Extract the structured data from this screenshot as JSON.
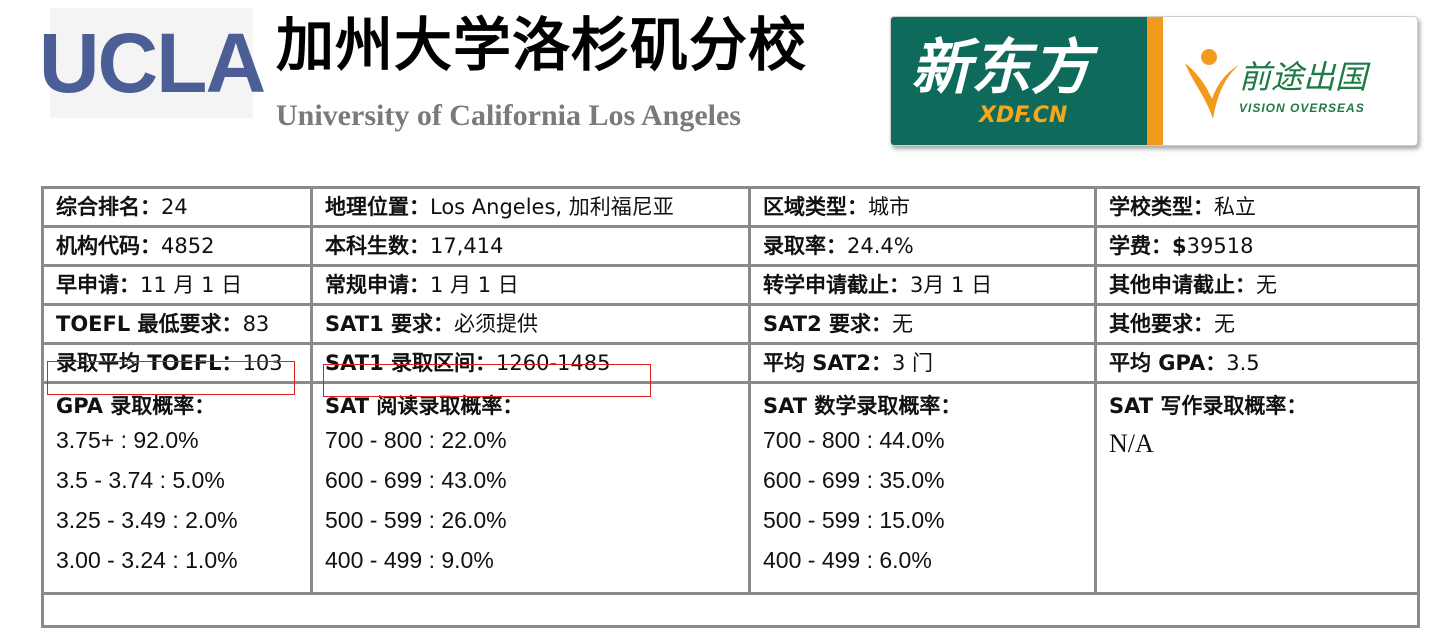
{
  "header": {
    "logo_text": "UCLA",
    "title_cn": "加州大学洛杉矶分校",
    "title_en": "University of California Los Angeles",
    "partner": {
      "xdf_cn": "新东方",
      "xdf_en": "XDF.CN",
      "vo_cn": "前途出国",
      "vo_en": "VISION OVERSEAS"
    }
  },
  "colors": {
    "ucla_blue": "#4b5f96",
    "xdf_green": "#0e6b5b",
    "xdf_orange": "#f29a1b",
    "highlight_red": "#e02020"
  },
  "rows": [
    [
      {
        "label": "综合排名：",
        "value": "24"
      },
      {
        "label": "地理位置：",
        "value": "Los Angeles, 加利福尼亚"
      },
      {
        "label": "区域类型：",
        "value": "城市"
      },
      {
        "label": "学校类型：",
        "value": "私立"
      }
    ],
    [
      {
        "label": "机构代码：",
        "value": "4852"
      },
      {
        "label": "本科生数：",
        "value": "17,414"
      },
      {
        "label": "录取率：",
        "value": "24.4%"
      },
      {
        "label": "学费：$",
        "value": "39518"
      }
    ],
    [
      {
        "label": "早申请：",
        "value": "11 月 1 日"
      },
      {
        "label": "常规申请：",
        "value": "1 月 1 日"
      },
      {
        "label": "转学申请截止：",
        "value": "3月 1 日"
      },
      {
        "label": "其他申请截止：",
        "value": "无"
      }
    ],
    [
      {
        "label": "TOEFL 最低要求：",
        "value": "83"
      },
      {
        "label": "SAT1 要求：",
        "value": "必须提供"
      },
      {
        "label": "SAT2 要求：",
        "value": "无"
      },
      {
        "label": "其他要求：",
        "value": "无"
      }
    ],
    [
      {
        "label": "录取平均 TOEFL：",
        "value": "103"
      },
      {
        "label": "SAT1 录取区间：",
        "value": "1260-1485"
      },
      {
        "label": "平均 SAT2：",
        "value": "3 门"
      },
      {
        "label": "平均 GPA：",
        "value": "3.5"
      }
    ]
  ],
  "probabilities": {
    "gpa": {
      "title": "GPA 录取概率：",
      "lines": [
        "3.75+ : 92.0%",
        "3.5 - 3.74 : 5.0%",
        "3.25 - 3.49 : 2.0%",
        "3.00 - 3.24 : 1.0%"
      ]
    },
    "sat_reading": {
      "title": "SAT 阅读录取概率：",
      "lines": [
        "700 - 800 : 22.0%",
        "600 - 699 : 43.0%",
        "500 - 599 : 26.0%",
        "400 - 499 : 9.0%"
      ]
    },
    "sat_math": {
      "title": "SAT 数学录取概率：",
      "lines": [
        "700 - 800 : 44.0%",
        "600 - 699 : 35.0%",
        "500 - 599 : 15.0%",
        "400 - 499 : 6.0%"
      ]
    },
    "sat_writing": {
      "title": "SAT 写作录取概率：",
      "value": "N/A"
    }
  }
}
